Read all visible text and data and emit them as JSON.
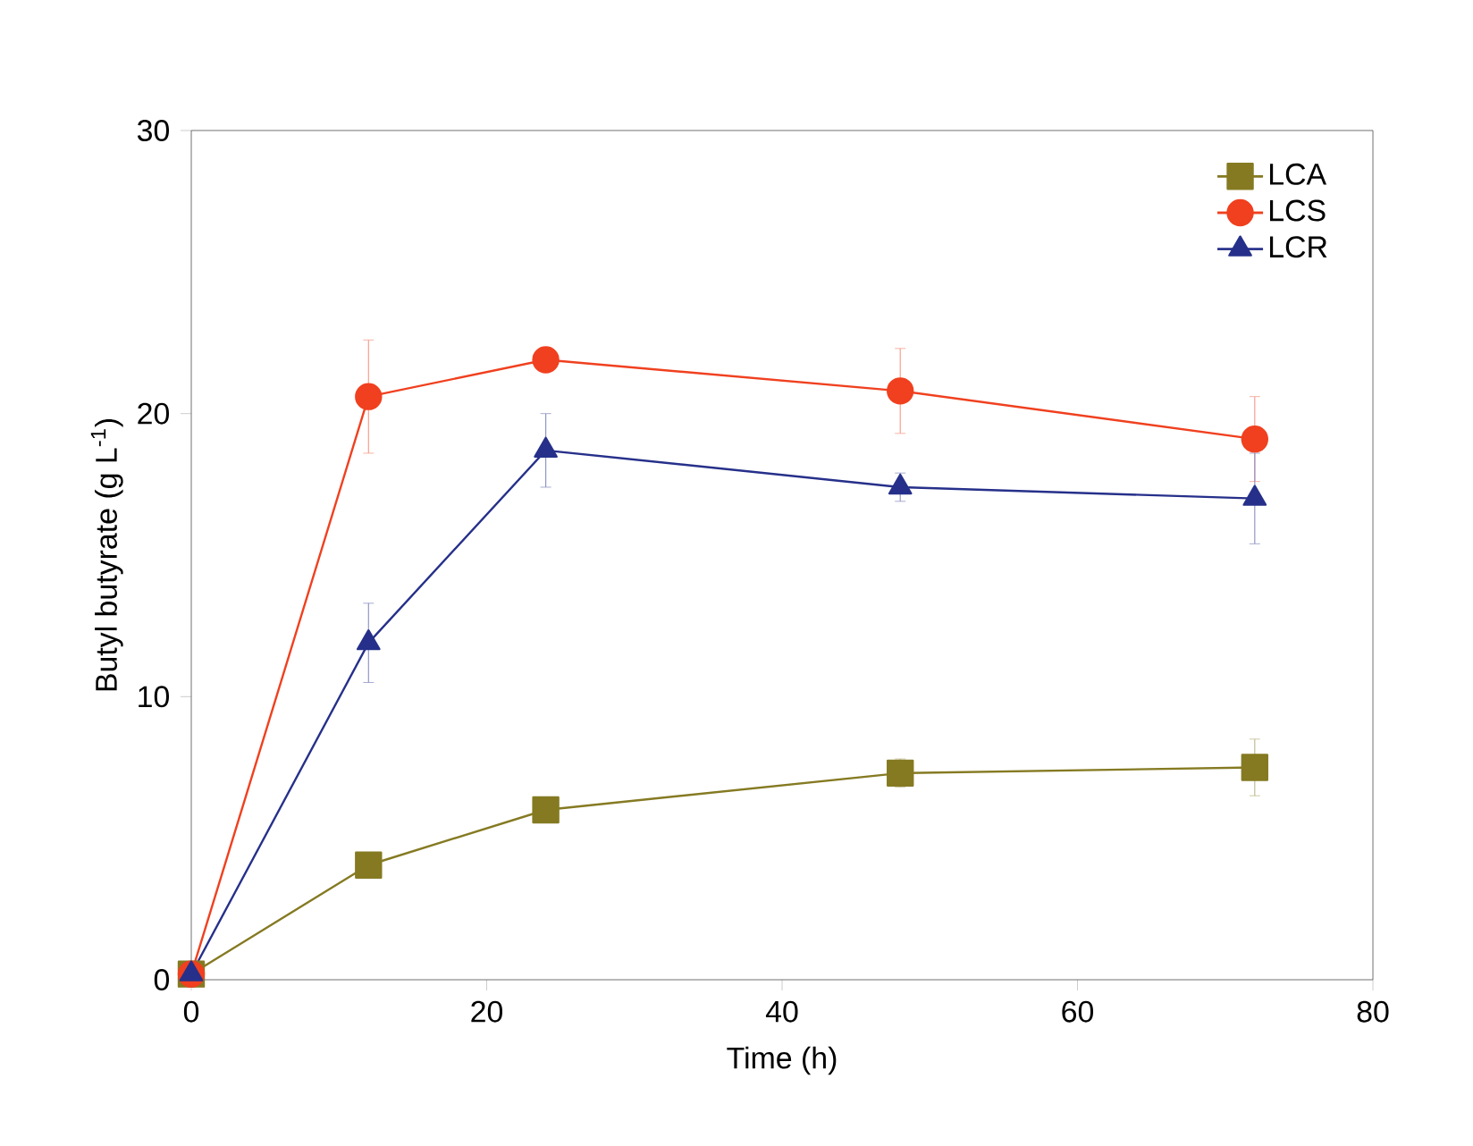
{
  "chart_data": {
    "type": "line",
    "xlabel": "Time (h)",
    "ylabel": "Butyl butyrate (g L$^{-1}$)",
    "x": [
      0,
      12,
      24,
      48,
      72
    ],
    "series": [
      {
        "name": "LCA",
        "color": "#857a22",
        "marker": "square",
        "values": [
          0.2,
          4.05,
          6.0,
          7.3,
          7.5
        ],
        "errors": [
          null,
          0.3,
          0.3,
          0.5,
          1.0
        ]
      },
      {
        "name": "LCS",
        "color": "#f0401f",
        "marker": "circle",
        "values": [
          0.2,
          20.6,
          21.9,
          20.8,
          19.1
        ],
        "errors": [
          null,
          2.0,
          0.3,
          1.5,
          1.5
        ]
      },
      {
        "name": "LCR",
        "color": "#26308a",
        "marker": "triangle",
        "values": [
          0.2,
          11.9,
          18.7,
          17.4,
          17.0
        ],
        "errors": [
          null,
          1.4,
          1.3,
          0.5,
          1.6
        ]
      }
    ],
    "xlim": [
      0,
      80
    ],
    "ylim": [
      0,
      30
    ],
    "xticks": [
      0,
      20,
      40,
      60,
      80
    ],
    "yticks": [
      0,
      10,
      20,
      30
    ],
    "legend": "top right",
    "line_style": "solid"
  }
}
